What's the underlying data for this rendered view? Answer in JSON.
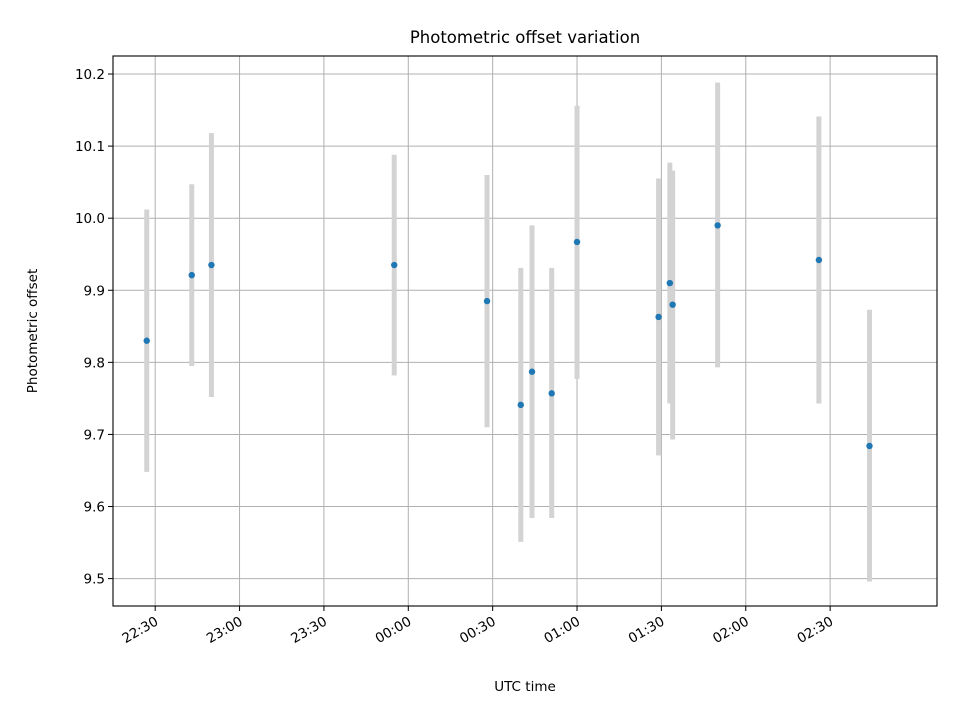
{
  "chart_data": {
    "type": "scatter",
    "title": "Photometric offset variation",
    "xlabel": "UTC time",
    "ylabel": "Photometric offset",
    "x_ticks": [
      "22:30",
      "23:00",
      "23:30",
      "00:00",
      "00:30",
      "01:00",
      "01:30",
      "02:00",
      "02:30"
    ],
    "y_ticks": [
      "9.5",
      "9.6",
      "9.7",
      "9.8",
      "9.9",
      "10.0",
      "10.1",
      "10.2"
    ],
    "ylim": [
      9.462,
      10.225
    ],
    "xlim": [
      "22:15",
      "03:08"
    ],
    "grid": true,
    "errorbar_color": "#d3d3d3",
    "marker_color": "#1f77b4",
    "points": [
      {
        "time": "22:27",
        "y": 9.83,
        "low": 9.648,
        "high": 10.012
      },
      {
        "time": "22:43",
        "y": 9.921,
        "low": 9.795,
        "high": 10.047
      },
      {
        "time": "22:50",
        "y": 9.935,
        "low": 9.752,
        "high": 10.118
      },
      {
        "time": "23:55",
        "y": 9.935,
        "low": 9.782,
        "high": 10.088
      },
      {
        "time": "00:28",
        "y": 9.885,
        "low": 9.71,
        "high": 10.06
      },
      {
        "time": "00:40",
        "y": 9.741,
        "low": 9.551,
        "high": 9.931
      },
      {
        "time": "00:44",
        "y": 9.787,
        "low": 9.584,
        "high": 9.99
      },
      {
        "time": "00:51",
        "y": 9.757,
        "low": 9.584,
        "high": 9.931
      },
      {
        "time": "01:00",
        "y": 9.967,
        "low": 9.777,
        "high": 10.156
      },
      {
        "time": "01:29",
        "y": 9.863,
        "low": 9.671,
        "high": 10.055
      },
      {
        "time": "01:33",
        "y": 9.91,
        "low": 9.743,
        "high": 10.077
      },
      {
        "time": "01:34",
        "y": 9.88,
        "low": 9.693,
        "high": 10.066
      },
      {
        "time": "01:50",
        "y": 9.99,
        "low": 9.793,
        "high": 10.188
      },
      {
        "time": "02:26",
        "y": 9.942,
        "low": 9.743,
        "high": 10.141
      },
      {
        "time": "02:44",
        "y": 9.684,
        "low": 9.496,
        "high": 9.873
      }
    ]
  }
}
